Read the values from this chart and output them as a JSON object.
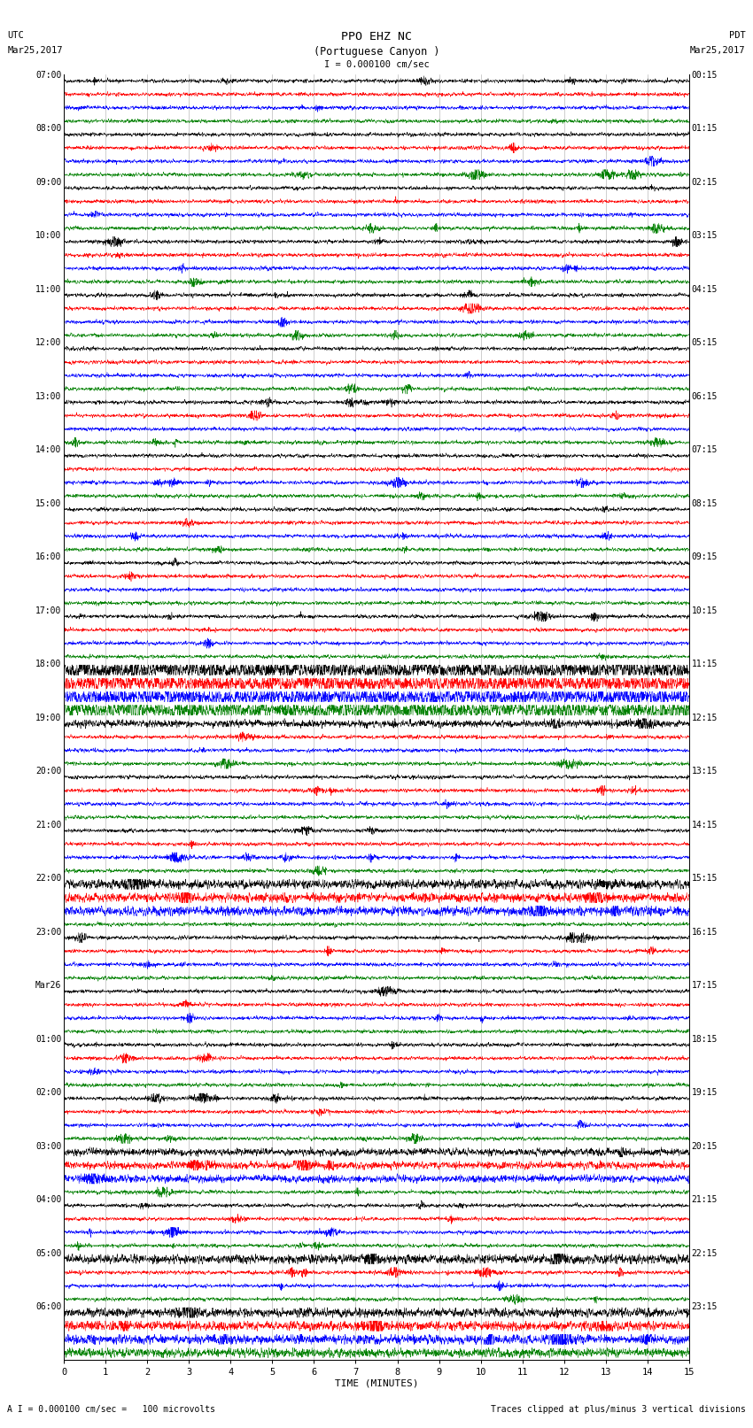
{
  "title_line1": "PPO EHZ NC",
  "title_line2": "(Portuguese Canyon )",
  "scale_text": "I = 0.000100 cm/sec",
  "utc_label": "UTC",
  "utc_date": "Mar25,2017",
  "pdt_label": "PDT",
  "pdt_date": "Mar25,2017",
  "xlabel": "TIME (MINUTES)",
  "footer_left": "A I = 0.000100 cm/sec =   100 microvolts",
  "footer_right": "Traces clipped at plus/minus 3 vertical divisions",
  "bg_color": "#ffffff",
  "trace_colors": [
    "black",
    "red",
    "blue",
    "green"
  ],
  "n_rows": 96,
  "xlim": [
    0,
    15
  ],
  "xticks": [
    0,
    1,
    2,
    3,
    4,
    5,
    6,
    7,
    8,
    9,
    10,
    11,
    12,
    13,
    14,
    15
  ],
  "left_labels_utc": [
    "07:00",
    "",
    "",
    "",
    "08:00",
    "",
    "",
    "",
    "09:00",
    "",
    "",
    "",
    "10:00",
    "",
    "",
    "",
    "11:00",
    "",
    "",
    "",
    "12:00",
    "",
    "",
    "",
    "13:00",
    "",
    "",
    "",
    "14:00",
    "",
    "",
    "",
    "15:00",
    "",
    "",
    "",
    "16:00",
    "",
    "",
    "",
    "17:00",
    "",
    "",
    "",
    "18:00",
    "",
    "",
    "",
    "19:00",
    "",
    "",
    "",
    "20:00",
    "",
    "",
    "",
    "21:00",
    "",
    "",
    "",
    "22:00",
    "",
    "",
    "",
    "23:00",
    "",
    "",
    "",
    "Mar26",
    "",
    "",
    "",
    "01:00",
    "",
    "",
    "",
    "02:00",
    "",
    "",
    "",
    "03:00",
    "",
    "",
    "",
    "04:00",
    "",
    "",
    "",
    "05:00",
    "",
    "",
    "",
    "06:00",
    "",
    "",
    ""
  ],
  "right_labels_pdt": [
    "00:15",
    "",
    "",
    "",
    "01:15",
    "",
    "",
    "",
    "02:15",
    "",
    "",
    "",
    "03:15",
    "",
    "",
    "",
    "04:15",
    "",
    "",
    "",
    "05:15",
    "",
    "",
    "",
    "06:15",
    "",
    "",
    "",
    "07:15",
    "",
    "",
    "",
    "08:15",
    "",
    "",
    "",
    "09:15",
    "",
    "",
    "",
    "10:15",
    "",
    "",
    "",
    "11:15",
    "",
    "",
    "",
    "12:15",
    "",
    "",
    "",
    "13:15",
    "",
    "",
    "",
    "14:15",
    "",
    "",
    "",
    "15:15",
    "",
    "",
    "",
    "16:15",
    "",
    "",
    "",
    "17:15",
    "",
    "",
    "",
    "18:15",
    "",
    "",
    "",
    "19:15",
    "",
    "",
    "",
    "20:15",
    "",
    "",
    "",
    "21:15",
    "",
    "",
    "",
    "22:15",
    "",
    "",
    "",
    "23:15",
    "",
    "",
    ""
  ],
  "seed": 42,
  "n_points": 3000,
  "base_noise_std": 0.06,
  "clip_limit": 0.38,
  "lw": 0.35
}
